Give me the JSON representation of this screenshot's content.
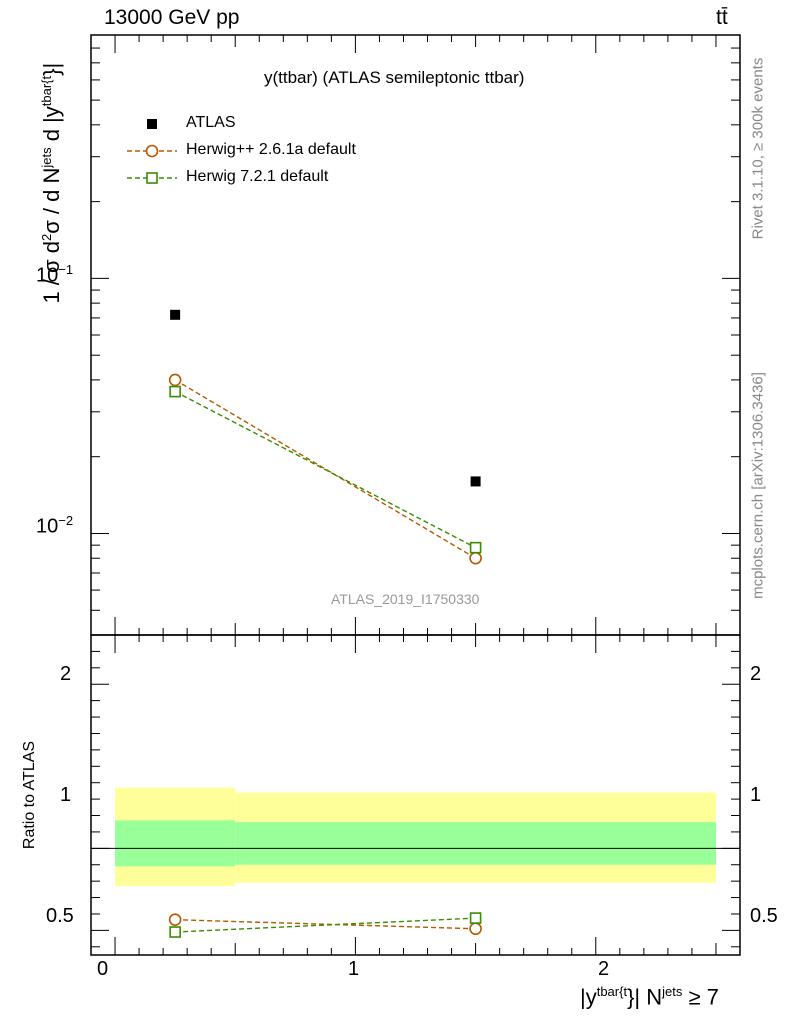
{
  "header": {
    "beam": "13000 GeV pp",
    "process": "tt̄"
  },
  "side": {
    "rivet": "Rivet 3.1.10, ≥ 300k events",
    "mcplots": "mcplots.cern.ch [arXiv:1306.3436]"
  },
  "chart_data": [
    {
      "type": "scatter",
      "panel": "main",
      "title": "y(ttbar) (ATLAS semileptonic ttbar)",
      "analysis_id": "ATLAS_2019_I1750330",
      "ylabel_parts": [
        "1 / σ d",
        "2",
        "σ / d N",
        "jets",
        " d |y",
        "tbar{t",
        "}|"
      ],
      "xlim": [
        -0.1,
        2.6
      ],
      "ylim": [
        0.004,
        0.9
      ],
      "yscale": "log",
      "y_ticklabels": [
        {
          "base": "10",
          "exp": "−1",
          "value": 0.1
        },
        {
          "base": "10",
          "exp": "−2",
          "value": 0.01
        }
      ],
      "legend_position": "top-left",
      "x": [
        0.25,
        1.5
      ],
      "series": [
        {
          "name": "ATLAS",
          "values": [
            0.072,
            0.016
          ],
          "color": "#000000",
          "marker": "filled-square"
        },
        {
          "name": "Herwig++ 2.6.1a default",
          "values": [
            0.04,
            0.008
          ],
          "color": "#b35a00",
          "marker": "open-circle",
          "dashed": true
        },
        {
          "name": "Herwig 7.2.1 default",
          "values": [
            0.036,
            0.0088
          ],
          "color": "#3a8c00",
          "marker": "open-square",
          "dashed": true
        }
      ]
    },
    {
      "type": "scatter",
      "panel": "ratio",
      "ylabel": "Ratio to ATLAS",
      "xlabel_parts": [
        "|y",
        "tbar{t",
        "}| N",
        "jets",
        " ≥ 7"
      ],
      "xlim": [
        -0.1,
        2.6
      ],
      "ylim": [
        0.35,
        2.3
      ],
      "x_ticklabels": [
        "0",
        "1",
        "2"
      ],
      "y_ticklabels": [
        "0.5",
        "1",
        "2"
      ],
      "bands": [
        {
          "x": [
            0.0,
            0.5
          ],
          "stat": [
            0.89,
            1.17
          ],
          "total": [
            0.77,
            1.37
          ]
        },
        {
          "x": [
            0.5,
            2.5
          ],
          "stat": [
            0.9,
            1.16
          ],
          "total": [
            0.79,
            1.34
          ]
        }
      ],
      "band_colors": {
        "total": "#ffff99",
        "stat": "#99ff99"
      },
      "x": [
        0.25,
        1.5
      ],
      "series": [
        {
          "name": "Herwig++ 2.6.1a default",
          "values": [
            0.565,
            0.51
          ],
          "errors": [
            0.02,
            0.03
          ],
          "color": "#b35a00",
          "marker": "open-circle"
        },
        {
          "name": "Herwig 7.2.1 default",
          "values": [
            0.49,
            0.575
          ],
          "errors": [
            0.0,
            0.0
          ],
          "color": "#3a8c00",
          "marker": "open-square"
        }
      ]
    }
  ]
}
